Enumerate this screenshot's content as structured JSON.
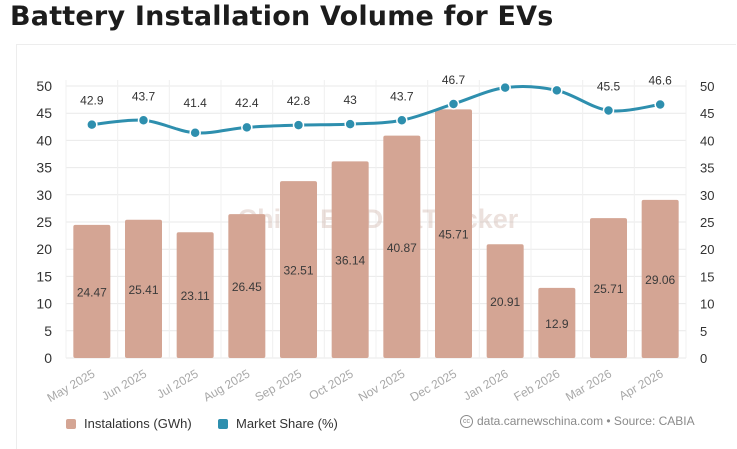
{
  "title": "Battery Installation Volume for EVs",
  "watermark": "China EV DataTracker",
  "source": "data.carnewschina.com • Source: CABIA",
  "chart_data": {
    "type": "bar",
    "categories": [
      "May 2025",
      "Jun 2025",
      "Jul 2025",
      "Aug 2025",
      "Sep 2025",
      "Oct 2025",
      "Nov 2025",
      "Dec 2025",
      "Jan 2026",
      "Feb 2026",
      "Mar 2026",
      "Apr 2026"
    ],
    "series": [
      {
        "name": "Instalations (GWh)",
        "type": "bar",
        "axis": "left",
        "color": "#d4a594",
        "values": [
          24.47,
          25.41,
          23.11,
          26.45,
          32.51,
          36.14,
          40.87,
          45.71,
          20.91,
          12.9,
          25.71,
          29.06
        ],
        "labels": [
          "24.47",
          "25.41",
          "23.11",
          "26.45",
          "32.51",
          "36.14",
          "40.87",
          "45.71",
          "20.91",
          "12.9",
          "25.71",
          "29.06"
        ]
      },
      {
        "name": "Market Share (%)",
        "type": "line",
        "axis": "right",
        "color": "#2e8fae",
        "values": [
          42.9,
          43.7,
          41.4,
          42.4,
          42.8,
          43,
          43.7,
          46.7,
          49.7,
          49.2,
          45.5,
          46.6
        ],
        "labels": [
          "42.9",
          "43.7",
          "41.4",
          "42.4",
          "42.8",
          "43",
          "43.7",
          "46.7",
          "",
          "",
          "45.5",
          "46.6"
        ]
      }
    ],
    "y_left": {
      "ylim": [
        0,
        50
      ],
      "ticks": [
        "0",
        "5",
        "10",
        "15",
        "20",
        "25",
        "30",
        "35",
        "40",
        "45",
        "50"
      ]
    },
    "y_right": {
      "ylim": [
        0,
        50
      ],
      "ticks": [
        "0",
        "5",
        "10",
        "15",
        "20",
        "25",
        "30",
        "35",
        "40",
        "45",
        "50"
      ]
    },
    "grid": true,
    "legend_position": "bottom-left"
  }
}
